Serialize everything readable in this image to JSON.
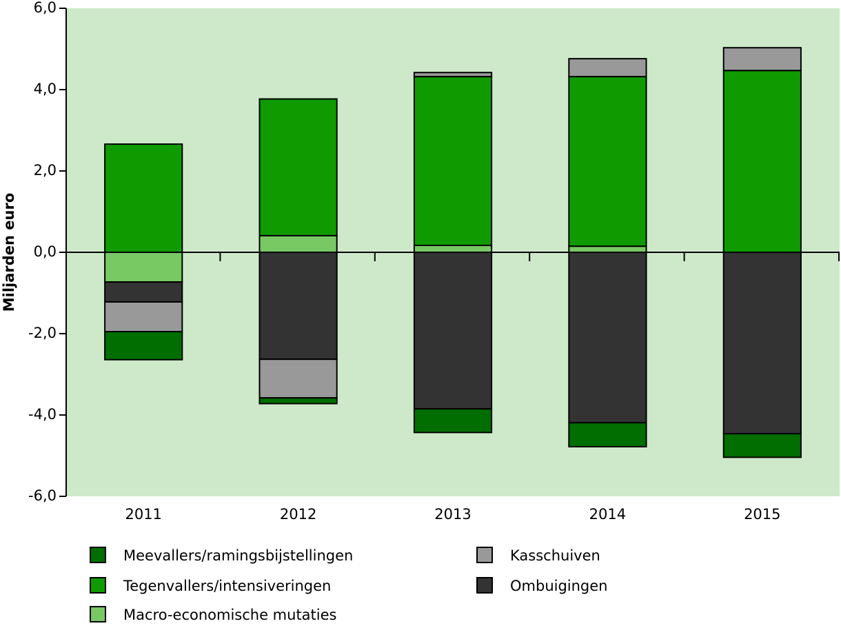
{
  "chart_data": {
    "type": "stacked_bar",
    "y_label": "Miljarden euro",
    "categories": [
      "2011",
      "2012",
      "2013",
      "2014",
      "2015"
    ],
    "series": [
      {
        "name": "Meevallers/ramingsbijstellingen",
        "color": "#006e00",
        "values": [
          -0.69,
          -0.14,
          -0.58,
          -0.59,
          -0.58
        ]
      },
      {
        "name": "Tegenvallers/intensiveringen",
        "color": "#0f9b00",
        "values": [
          2.66,
          3.36,
          4.15,
          4.17,
          4.47
        ]
      },
      {
        "name": "Macro-economische mutaties",
        "color": "#78c864",
        "values": [
          -0.73,
          0.41,
          0.17,
          0.15,
          0
        ]
      },
      {
        "name": "Kasschuiven",
        "color": "#999999",
        "values": [
          -0.73,
          -0.95,
          0.1,
          0.44,
          0.56
        ]
      },
      {
        "name": "Ombuigingen",
        "color": "#333333",
        "values": [
          -0.49,
          -2.63,
          -3.85,
          -4.19,
          -4.46
        ]
      }
    ],
    "ylim": [
      -6,
      6
    ],
    "yticks": [
      {
        "value": -6,
        "label": "-6,0"
      },
      {
        "value": -4,
        "label": "-4,0"
      },
      {
        "value": -2,
        "label": "-2,0"
      },
      {
        "value": 0,
        "label": "0,0"
      },
      {
        "value": 2,
        "label": "2,0"
      },
      {
        "value": 4,
        "label": "4,0"
      },
      {
        "value": 6,
        "label": "6,0"
      }
    ],
    "background": "#cde9c9"
  }
}
